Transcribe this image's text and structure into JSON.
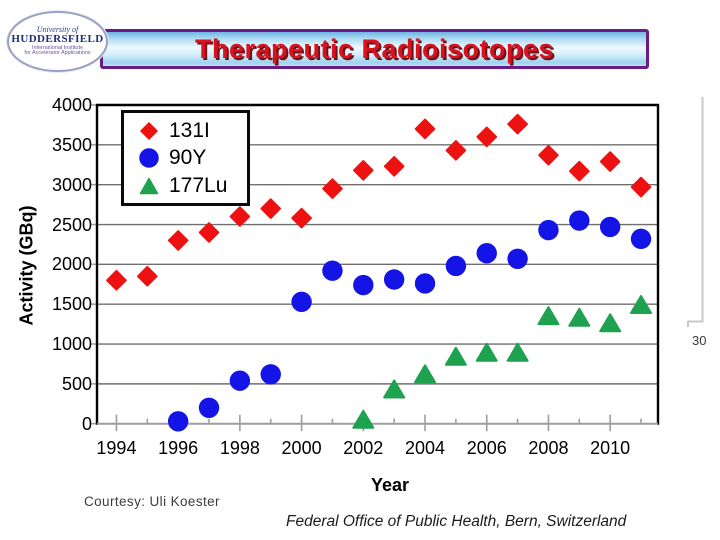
{
  "header": {
    "title": "Therapeutic Radioisotopes",
    "logo": {
      "line1": "University of",
      "line2": "HUDDERSFIELD",
      "line3": "International Institute",
      "line4": "for Accelerator Applications"
    }
  },
  "footer": {
    "courtesy": "Courtesy: Uli Koester",
    "attribution": "Federal Office of Public Health, Bern, Switzerland"
  },
  "side_fragment": {
    "label": "30"
  },
  "colors": {
    "title_red": "#d8121f",
    "bar_border_purple": "#6b1b84",
    "series_131I": "#ee1111",
    "series_90Y": "#1414e6",
    "series_177Lu": "#1fa24f",
    "gridline": "#6f6f6f",
    "axis": "#9e9e9e",
    "frame": "#000000",
    "fragment_gray": "#c9c9c9"
  },
  "chart_data": {
    "type": "scatter",
    "title": "",
    "xlabel": "Year",
    "ylabel": "Activity (GBq)",
    "xlim": [
      1993.37,
      2011.55
    ],
    "ylim": [
      0,
      4000
    ],
    "x_ticks": [
      1994,
      1996,
      1998,
      2000,
      2002,
      2004,
      2006,
      2008,
      2010
    ],
    "x_minor_ticks": [
      1994,
      1995,
      1996,
      1997,
      1998,
      1999,
      2000,
      2001,
      2002,
      2003,
      2004,
      2005,
      2006,
      2007,
      2008,
      2009,
      2010,
      2011
    ],
    "y_ticks": [
      0,
      500,
      1000,
      1500,
      2000,
      2500,
      3000,
      3500,
      4000
    ],
    "grid": "horizontal",
    "legend_position": "top-left",
    "series": [
      {
        "name": "131I",
        "marker": "diamond",
        "color": "#ee1111",
        "x": [
          1994,
          1995,
          1996,
          1997,
          1998,
          1999,
          2000,
          2001,
          2002,
          2003,
          2004,
          2005,
          2006,
          2007,
          2008,
          2009,
          2010,
          2011
        ],
        "y": [
          1800,
          1850,
          2300,
          2400,
          2600,
          2700,
          2580,
          2950,
          3180,
          3230,
          3700,
          3430,
          3600,
          3760,
          3370,
          3170,
          3290,
          2970
        ]
      },
      {
        "name": "90Y",
        "marker": "circle",
        "color": "#1414e6",
        "x": [
          1996,
          1997,
          1998,
          1999,
          2000,
          2001,
          2002,
          2003,
          2004,
          2005,
          2006,
          2007,
          2008,
          2009,
          2010,
          2011
        ],
        "y": [
          30,
          200,
          540,
          620,
          1530,
          1920,
          1740,
          1810,
          1760,
          1980,
          2140,
          2070,
          2430,
          2550,
          2470,
          2320
        ]
      },
      {
        "name": "177Lu",
        "marker": "triangle",
        "color": "#1fa24f",
        "x": [
          2002,
          2003,
          2004,
          2005,
          2006,
          2007,
          2008,
          2009,
          2010,
          2011
        ],
        "y": [
          50,
          430,
          620,
          840,
          890,
          890,
          1350,
          1330,
          1260,
          1490
        ]
      }
    ]
  }
}
